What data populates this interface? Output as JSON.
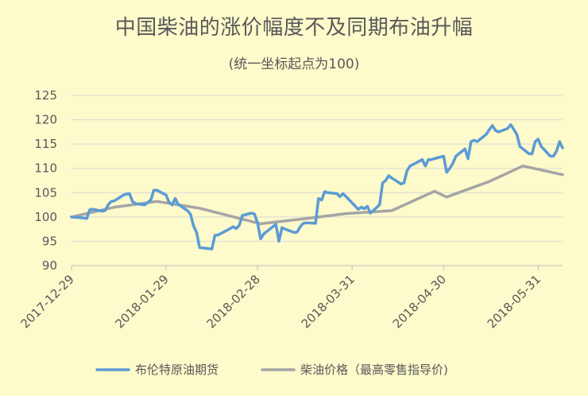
{
  "chart_data": {
    "type": "line",
    "title": "中国柴油的涨价幅度不及同期布油升幅",
    "subtitle": "(统一坐标起点为100)",
    "xlabel": "",
    "ylabel": "",
    "ylim": [
      90,
      125
    ],
    "yticks": [
      90,
      95,
      100,
      105,
      110,
      115,
      120,
      125
    ],
    "xlim": [
      "2017-12-29",
      "2018-06-08"
    ],
    "xticks": [
      "2017-12-29",
      "2018-01-29",
      "2018-02-28",
      "2018-03-31",
      "2018-04-30",
      "2018-05-31"
    ],
    "grid": "horizontal",
    "legend_position": "bottom",
    "colors": {
      "background": "#fdfacb",
      "brent": "#5b9bd5",
      "diesel": "#a5a5a5",
      "grid": "#d9d9d9"
    },
    "series": [
      {
        "name": "布伦特原油期货",
        "color": "#5b9bd5",
        "points": [
          [
            "2017-12-29",
            100.0
          ],
          [
            "2018-01-02",
            99.8
          ],
          [
            "2018-01-03",
            99.7
          ],
          [
            "2018-01-04",
            101.5
          ],
          [
            "2018-01-05",
            101.6
          ],
          [
            "2018-01-08",
            101.2
          ],
          [
            "2018-01-09",
            101.3
          ],
          [
            "2018-01-10",
            102.5
          ],
          [
            "2018-01-11",
            103.2
          ],
          [
            "2018-01-12",
            103.3
          ],
          [
            "2018-01-15",
            104.5
          ],
          [
            "2018-01-16",
            104.7
          ],
          [
            "2018-01-17",
            104.8
          ],
          [
            "2018-01-18",
            103.2
          ],
          [
            "2018-01-19",
            102.7
          ],
          [
            "2018-01-22",
            102.5
          ],
          [
            "2018-01-23",
            103.0
          ],
          [
            "2018-01-24",
            103.5
          ],
          [
            "2018-01-25",
            105.5
          ],
          [
            "2018-01-26",
            105.5
          ],
          [
            "2018-01-29",
            104.5
          ],
          [
            "2018-01-30",
            103.0
          ],
          [
            "2018-01-31",
            102.5
          ],
          [
            "2018-02-01",
            103.8
          ],
          [
            "2018-02-02",
            102.6
          ],
          [
            "2018-02-05",
            101.3
          ],
          [
            "2018-02-06",
            100.6
          ],
          [
            "2018-02-07",
            98.2
          ],
          [
            "2018-02-08",
            96.8
          ],
          [
            "2018-02-09",
            93.7
          ],
          [
            "2018-02-12",
            93.5
          ],
          [
            "2018-02-13",
            93.4
          ],
          [
            "2018-02-14",
            96.2
          ],
          [
            "2018-02-15",
            96.3
          ],
          [
            "2018-02-16",
            96.6
          ],
          [
            "2018-02-19",
            97.6
          ],
          [
            "2018-02-20",
            98.0
          ],
          [
            "2018-02-21",
            97.6
          ],
          [
            "2018-02-22",
            98.3
          ],
          [
            "2018-02-23",
            100.3
          ],
          [
            "2018-02-26",
            100.8
          ],
          [
            "2018-02-27",
            100.6
          ],
          [
            "2018-02-28",
            98.8
          ],
          [
            "2018-03-01",
            95.5
          ],
          [
            "2018-03-02",
            96.5
          ],
          [
            "2018-03-05",
            98.0
          ],
          [
            "2018-03-06",
            98.5
          ],
          [
            "2018-03-07",
            95.0
          ],
          [
            "2018-03-08",
            97.8
          ],
          [
            "2018-03-09",
            97.5
          ],
          [
            "2018-03-12",
            96.8
          ],
          [
            "2018-03-13",
            96.9
          ],
          [
            "2018-03-14",
            98.0
          ],
          [
            "2018-03-15",
            98.7
          ],
          [
            "2018-03-16",
            98.8
          ],
          [
            "2018-03-19",
            98.7
          ],
          [
            "2018-03-20",
            103.8
          ],
          [
            "2018-03-21",
            103.5
          ],
          [
            "2018-03-22",
            105.2
          ],
          [
            "2018-03-23",
            105.0
          ],
          [
            "2018-03-26",
            104.8
          ],
          [
            "2018-03-27",
            104.2
          ],
          [
            "2018-03-28",
            104.8
          ],
          [
            "2018-03-29",
            104.2
          ],
          [
            "2018-04-02",
            101.6
          ],
          [
            "2018-04-03",
            102.0
          ],
          [
            "2018-04-04",
            101.7
          ],
          [
            "2018-04-05",
            102.2
          ],
          [
            "2018-04-06",
            100.8
          ],
          [
            "2018-04-09",
            102.5
          ],
          [
            "2018-04-10",
            107.0
          ],
          [
            "2018-04-11",
            107.5
          ],
          [
            "2018-04-12",
            108.5
          ],
          [
            "2018-04-13",
            108.0
          ],
          [
            "2018-04-16",
            106.8
          ],
          [
            "2018-04-17",
            107.0
          ],
          [
            "2018-04-18",
            109.5
          ],
          [
            "2018-04-19",
            110.5
          ],
          [
            "2018-04-20",
            110.8
          ],
          [
            "2018-04-23",
            111.8
          ],
          [
            "2018-04-24",
            110.5
          ],
          [
            "2018-04-25",
            111.8
          ],
          [
            "2018-04-26",
            111.8
          ],
          [
            "2018-04-27",
            112.0
          ],
          [
            "2018-04-30",
            112.5
          ],
          [
            "2018-05-01",
            109.2
          ],
          [
            "2018-05-02",
            110.0
          ],
          [
            "2018-05-03",
            111.0
          ],
          [
            "2018-05-04",
            112.5
          ],
          [
            "2018-05-07",
            114.0
          ],
          [
            "2018-05-08",
            112.0
          ],
          [
            "2018-05-09",
            115.5
          ],
          [
            "2018-05-10",
            115.8
          ],
          [
            "2018-05-11",
            115.5
          ],
          [
            "2018-05-14",
            117.0
          ],
          [
            "2018-05-15",
            118.0
          ],
          [
            "2018-05-16",
            118.8
          ],
          [
            "2018-05-17",
            117.8
          ],
          [
            "2018-05-18",
            117.5
          ],
          [
            "2018-05-21",
            118.2
          ],
          [
            "2018-05-22",
            119.0
          ],
          [
            "2018-05-23",
            118.0
          ],
          [
            "2018-05-24",
            117.0
          ],
          [
            "2018-05-25",
            114.5
          ],
          [
            "2018-05-28",
            113.0
          ],
          [
            "2018-05-29",
            113.0
          ],
          [
            "2018-05-30",
            115.5
          ],
          [
            "2018-05-31",
            116.0
          ],
          [
            "2018-06-01",
            114.5
          ],
          [
            "2018-06-04",
            112.5
          ],
          [
            "2018-06-05",
            112.5
          ],
          [
            "2018-06-06",
            113.5
          ],
          [
            "2018-06-07",
            115.5
          ],
          [
            "2018-06-08",
            114.2
          ]
        ]
      },
      {
        "name": "柴油价格（最高零售指导价)",
        "color": "#a5a5a5",
        "points": [
          [
            "2017-12-29",
            100.0
          ],
          [
            "2018-01-12",
            102.0
          ],
          [
            "2018-01-26",
            103.2
          ],
          [
            "2018-02-09",
            101.8
          ],
          [
            "2018-03-01",
            98.6
          ],
          [
            "2018-03-15",
            99.6
          ],
          [
            "2018-03-29",
            100.7
          ],
          [
            "2018-04-13",
            101.3
          ],
          [
            "2018-04-27",
            105.3
          ],
          [
            "2018-05-01",
            104.1
          ],
          [
            "2018-05-15",
            107.3
          ],
          [
            "2018-05-26",
            110.5
          ],
          [
            "2018-06-08",
            108.7
          ]
        ]
      }
    ]
  }
}
